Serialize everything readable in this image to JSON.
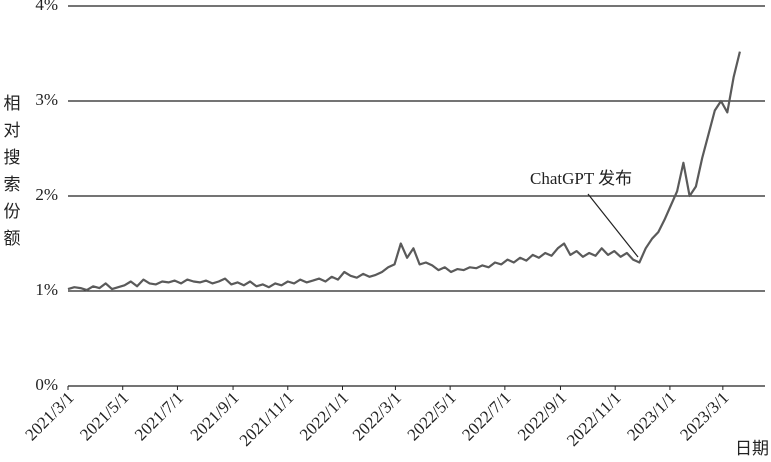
{
  "chart_data": {
    "type": "line",
    "y_label": "相对搜索份额",
    "x_label": "日期",
    "annotation": "ChatGPT 发布",
    "xlim": [
      "2021/3/1",
      "2023/4/17"
    ],
    "xticks": [
      "2021/3/1",
      "2021/5/1",
      "2021/7/1",
      "2021/9/1",
      "2021/11/1",
      "2022/1/1",
      "2022/3/1",
      "2022/5/1",
      "2022/7/1",
      "2022/9/1",
      "2022/11/1",
      "2023/1/1",
      "2023/3/1"
    ],
    "ylim": [
      0,
      4
    ],
    "yticks": [
      {
        "value": 0,
        "label": "0%"
      },
      {
        "value": 1,
        "label": "1%"
      },
      {
        "value": 2,
        "label": "2%"
      },
      {
        "value": 3,
        "label": "3%"
      },
      {
        "value": 4,
        "label": "4%"
      }
    ],
    "grid": true,
    "color": "#5a5a5a",
    "x": [
      "2021/3/1",
      "2021/3/8",
      "2021/3/15",
      "2021/3/22",
      "2021/3/29",
      "2021/4/5",
      "2021/4/12",
      "2021/4/19",
      "2021/4/26",
      "2021/5/3",
      "2021/5/10",
      "2021/5/17",
      "2021/5/24",
      "2021/5/31",
      "2021/6/7",
      "2021/6/14",
      "2021/6/21",
      "2021/6/28",
      "2021/7/5",
      "2021/7/12",
      "2021/7/19",
      "2021/7/26",
      "2021/8/2",
      "2021/8/9",
      "2021/8/16",
      "2021/8/23",
      "2021/8/30",
      "2021/9/6",
      "2021/9/13",
      "2021/9/20",
      "2021/9/27",
      "2021/10/4",
      "2021/10/11",
      "2021/10/18",
      "2021/10/25",
      "2021/11/1",
      "2021/11/8",
      "2021/11/15",
      "2021/11/22",
      "2021/11/29",
      "2021/12/6",
      "2021/12/13",
      "2021/12/20",
      "2021/12/27",
      "2022/1/3",
      "2022/1/10",
      "2022/1/17",
      "2022/1/24",
      "2022/1/31",
      "2022/2/7",
      "2022/2/14",
      "2022/2/21",
      "2022/2/28",
      "2022/3/7",
      "2022/3/14",
      "2022/3/21",
      "2022/3/28",
      "2022/4/4",
      "2022/4/11",
      "2022/4/18",
      "2022/4/25",
      "2022/5/2",
      "2022/5/9",
      "2022/5/16",
      "2022/5/23",
      "2022/5/30",
      "2022/6/6",
      "2022/6/13",
      "2022/6/20",
      "2022/6/27",
      "2022/7/4",
      "2022/7/11",
      "2022/7/18",
      "2022/7/25",
      "2022/8/1",
      "2022/8/8",
      "2022/8/15",
      "2022/8/22",
      "2022/8/29",
      "2022/9/5",
      "2022/9/12",
      "2022/9/19",
      "2022/9/26",
      "2022/10/3",
      "2022/10/10",
      "2022/10/17",
      "2022/10/24",
      "2022/10/31",
      "2022/11/7",
      "2022/11/14",
      "2022/11/21",
      "2022/11/28",
      "2022/12/5",
      "2022/12/12",
      "2022/12/19",
      "2022/12/26",
      "2023/1/2",
      "2023/1/9",
      "2023/1/16",
      "2023/1/23",
      "2023/1/30",
      "2023/2/6",
      "2023/2/13",
      "2023/2/20",
      "2023/2/27",
      "2023/3/6",
      "2023/3/13",
      "2023/3/20"
    ],
    "values": [
      1.02,
      1.04,
      1.03,
      1.01,
      1.05,
      1.03,
      1.08,
      1.02,
      1.04,
      1.06,
      1.1,
      1.05,
      1.12,
      1.08,
      1.07,
      1.1,
      1.09,
      1.11,
      1.08,
      1.12,
      1.1,
      1.09,
      1.11,
      1.08,
      1.1,
      1.13,
      1.07,
      1.09,
      1.06,
      1.1,
      1.05,
      1.07,
      1.04,
      1.08,
      1.06,
      1.1,
      1.08,
      1.12,
      1.09,
      1.11,
      1.13,
      1.1,
      1.15,
      1.12,
      1.2,
      1.16,
      1.14,
      1.18,
      1.15,
      1.17,
      1.2,
      1.25,
      1.28,
      1.5,
      1.35,
      1.45,
      1.28,
      1.3,
      1.27,
      1.22,
      1.25,
      1.2,
      1.23,
      1.22,
      1.25,
      1.24,
      1.27,
      1.25,
      1.3,
      1.28,
      1.33,
      1.3,
      1.35,
      1.32,
      1.38,
      1.35,
      1.4,
      1.37,
      1.45,
      1.5,
      1.38,
      1.42,
      1.36,
      1.4,
      1.37,
      1.45,
      1.38,
      1.42,
      1.36,
      1.4,
      1.33,
      1.3,
      1.45,
      1.55,
      1.62,
      1.75,
      1.9,
      2.05,
      2.35,
      2.0,
      2.1,
      2.4,
      2.65,
      2.9,
      3.0,
      2.88,
      3.25,
      3.52
    ]
  }
}
